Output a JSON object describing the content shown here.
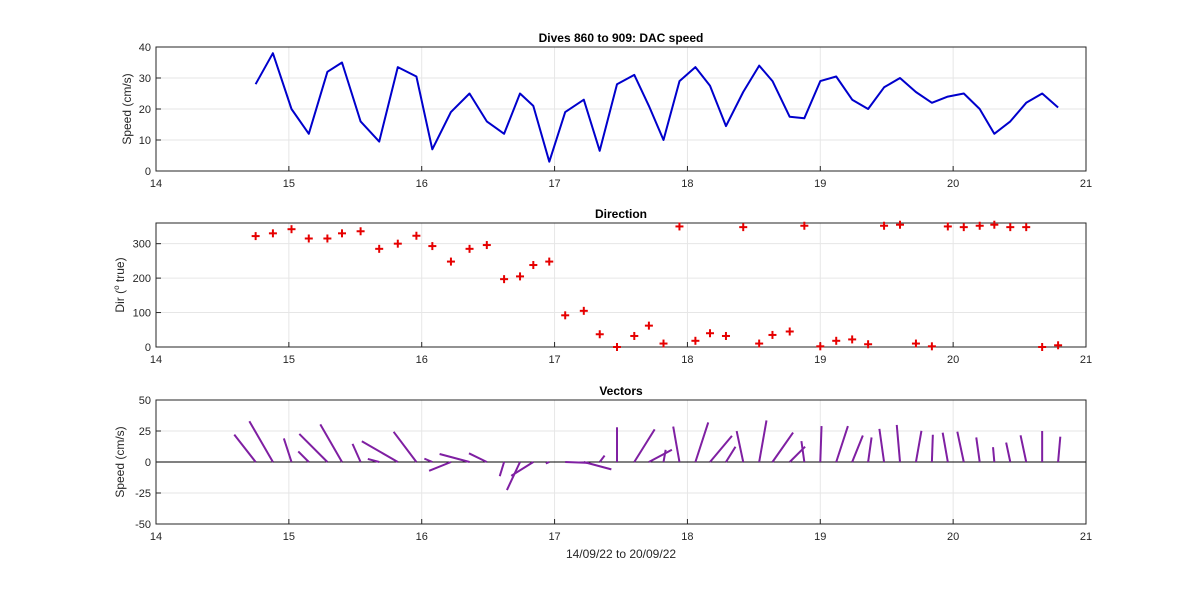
{
  "figure_note": "",
  "chart_data": [
    {
      "type": "line",
      "title": "Dives 860 to 909: DAC speed",
      "xlabel": "",
      "ylabel": "Speed (cm/s)",
      "xlim": [
        14,
        21
      ],
      "ylim": [
        0,
        40
      ],
      "xticks": [
        "14",
        "15",
        "16",
        "17",
        "18",
        "19",
        "20",
        "21"
      ],
      "yticks": [
        "0",
        "10",
        "20",
        "30",
        "40"
      ],
      "grid": true,
      "series": [
        {
          "color": "#0000cc",
          "x": [
            14.75,
            14.88,
            15.02,
            15.15,
            15.29,
            15.4,
            15.54,
            15.68,
            15.82,
            15.96,
            16.08,
            16.22,
            16.36,
            16.49,
            16.62,
            16.74,
            16.84,
            16.96,
            17.08,
            17.22,
            17.34,
            17.47,
            17.6,
            17.71,
            17.82,
            17.94,
            18.06,
            18.17,
            18.29,
            18.42,
            18.54,
            18.64,
            18.77,
            18.88,
            19.0,
            19.12,
            19.24,
            19.36,
            19.48,
            19.6,
            19.72,
            19.84,
            19.96,
            20.08,
            20.2,
            20.31,
            20.43,
            20.55,
            20.67,
            20.79
          ],
          "y": [
            28,
            38,
            20,
            12,
            32,
            35,
            16,
            9.5,
            33.5,
            30.5,
            7,
            19,
            25,
            16,
            12,
            25,
            21,
            3,
            19,
            23,
            6.5,
            28,
            31,
            21,
            10,
            29,
            33.5,
            27.5,
            14.5,
            25.5,
            34,
            29,
            17.5,
            17,
            29,
            30.5,
            23,
            20,
            27,
            30,
            25.5,
            22,
            24,
            25,
            20,
            12,
            16,
            22,
            25,
            20.5
          ]
        }
      ]
    },
    {
      "type": "scatter",
      "title": "Direction",
      "xlabel": "",
      "ylabel": "Dir (",
      "ylabel_sup": "o",
      "ylabel_rest": " true)",
      "xlim": [
        14,
        21
      ],
      "ylim": [
        0,
        360
      ],
      "xticks": [
        "14",
        "15",
        "16",
        "17",
        "18",
        "19",
        "20",
        "21"
      ],
      "yticks": [
        "0",
        "100",
        "200",
        "300"
      ],
      "grid": true,
      "marker": "+",
      "series": [
        {
          "color": "#e60000",
          "x": [
            14.75,
            14.88,
            15.02,
            15.15,
            15.29,
            15.4,
            15.54,
            15.68,
            15.82,
            15.96,
            16.08,
            16.22,
            16.36,
            16.49,
            16.62,
            16.74,
            16.84,
            16.96,
            17.08,
            17.22,
            17.34,
            17.47,
            17.6,
            17.71,
            17.82,
            17.94,
            18.06,
            18.17,
            18.29,
            18.42,
            18.54,
            18.64,
            18.77,
            18.88,
            19.0,
            19.12,
            19.24,
            19.36,
            19.48,
            19.6,
            19.72,
            19.84,
            19.96,
            20.08,
            20.2,
            20.31,
            20.43,
            20.55,
            20.67,
            20.79
          ],
          "y": [
            322,
            330,
            342,
            315,
            315,
            330,
            336,
            285,
            300,
            323,
            293,
            248,
            285,
            296,
            197,
            205,
            238,
            248,
            92,
            105,
            37,
            0,
            32,
            62,
            10,
            350,
            18,
            40,
            32,
            348,
            10,
            35,
            45,
            352,
            2,
            18,
            22,
            8,
            352,
            355,
            10,
            2,
            350,
            348,
            352,
            355,
            348,
            348,
            0,
            5
          ]
        }
      ]
    },
    {
      "type": "scatter",
      "title": "Vectors",
      "xlabel": "14/09/22 to 20/09/22",
      "ylabel": "Speed (cm/s)",
      "xlim": [
        14,
        21
      ],
      "ylim": [
        -50,
        50
      ],
      "xticks": [
        "14",
        "15",
        "16",
        "17",
        "18",
        "19",
        "20",
        "21"
      ],
      "yticks": [
        "-50",
        "-25",
        "0",
        "25",
        "50"
      ],
      "grid": true,
      "baseline": 0,
      "vector_color": "#7f1fa2"
    }
  ]
}
